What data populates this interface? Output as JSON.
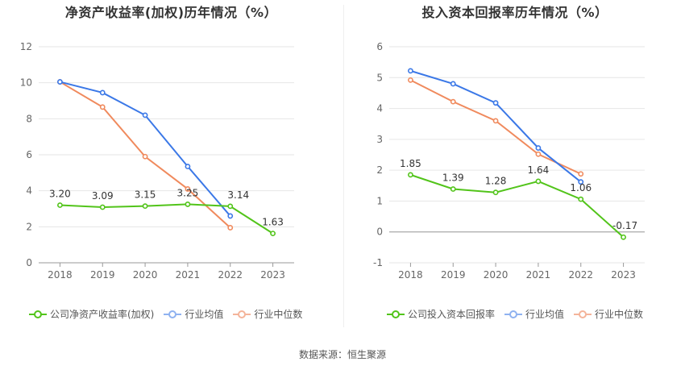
{
  "source_label": "数据来源：恒生聚源",
  "colors": {
    "company": "#52c41a",
    "industry_avg": "#3b78e7",
    "industry_median": "#f08a5d",
    "legend_avg": "#8fb2f0",
    "legend_median": "#f4b49a",
    "grid": "#e6e6e6",
    "axis": "#999999",
    "tick_text": "#666666"
  },
  "chart_data": [
    {
      "type": "line",
      "title": "净资产收益率(加权)历年情况（%）",
      "categories": [
        "2018",
        "2019",
        "2020",
        "2021",
        "2022",
        "2023"
      ],
      "ylim": [
        0,
        12
      ],
      "yticks": [
        0,
        2,
        4,
        6,
        8,
        10,
        12
      ],
      "grid": true,
      "legend_position": "bottom-left",
      "series": [
        {
          "name": "公司净资产收益率(加权)",
          "key": "company",
          "values": [
            3.2,
            3.09,
            3.15,
            3.25,
            3.14,
            1.63
          ],
          "labels": [
            "3.20",
            "3.09",
            "3.15",
            "3.25",
            "3.14",
            "1.63"
          ]
        },
        {
          "name": "行业均值",
          "key": "industry_avg",
          "values": [
            10.05,
            9.45,
            8.2,
            5.35,
            2.6,
            null
          ]
        },
        {
          "name": "行业中位数",
          "key": "industry_median",
          "values": [
            10.05,
            8.65,
            5.9,
            4.1,
            1.95,
            null
          ]
        }
      ]
    },
    {
      "type": "line",
      "title": "投入资本回报率历年情况（%）",
      "categories": [
        "2018",
        "2019",
        "2020",
        "2021",
        "2022",
        "2023"
      ],
      "ylim": [
        -1,
        6
      ],
      "yticks": [
        -1,
        0,
        1,
        2,
        3,
        4,
        5,
        6
      ],
      "grid": true,
      "legend_position": "bottom-left",
      "series": [
        {
          "name": "公司投入资本回报率",
          "key": "company",
          "values": [
            1.85,
            1.39,
            1.28,
            1.64,
            1.06,
            -0.17
          ],
          "labels": [
            "1.85",
            "1.39",
            "1.28",
            "1.64",
            "1.06",
            "-0.17"
          ]
        },
        {
          "name": "行业均值",
          "key": "industry_avg",
          "values": [
            5.22,
            4.8,
            4.18,
            2.72,
            1.62,
            null
          ]
        },
        {
          "name": "行业中位数",
          "key": "industry_median",
          "values": [
            4.92,
            4.22,
            3.6,
            2.52,
            1.88,
            null
          ]
        }
      ]
    }
  ]
}
